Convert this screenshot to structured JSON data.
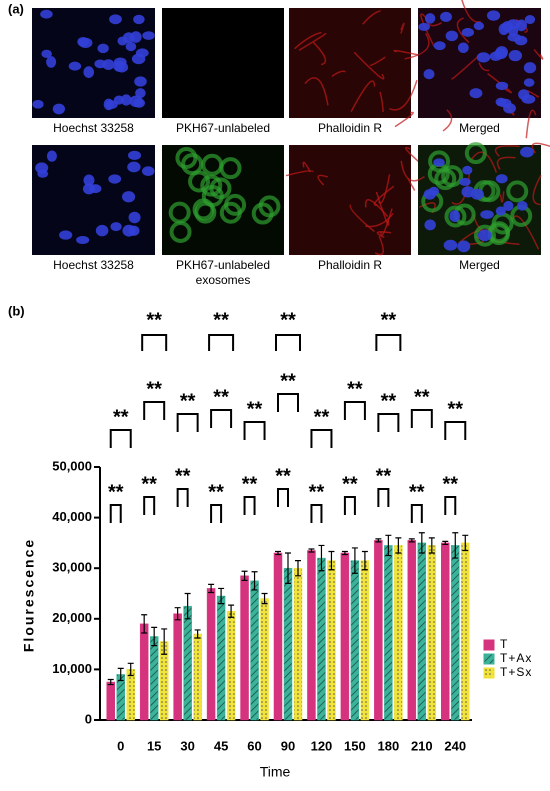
{
  "panel_a": {
    "label": "(a)",
    "row1": [
      "Hoechst 33258",
      "PKH67-unlabeled",
      "Phalloidin R",
      "Merged"
    ],
    "row2": [
      "Hoechst 33258",
      "PKH67-unlabeled exosomes",
      "Phalloidin R",
      "Merged"
    ]
  },
  "chart_data": {
    "type": "bar",
    "panel_label": "(b)",
    "x_label": "Time",
    "y_label": "Flourescence",
    "categories": [
      "0",
      "15",
      "30",
      "45",
      "60",
      "90",
      "120",
      "150",
      "180",
      "210",
      "240"
    ],
    "series": [
      {
        "name": "T",
        "color": "#d6337f",
        "pattern": "solid",
        "values": [
          7500,
          19000,
          21000,
          26000,
          28500,
          33000,
          33500,
          33000,
          35500,
          35500,
          35000
        ],
        "errors": [
          500,
          1800,
          1200,
          800,
          900,
          300,
          300,
          300,
          300,
          300,
          300
        ]
      },
      {
        "name": "T+Ax",
        "color": "#3bb39a",
        "pattern": "hatch",
        "values": [
          9000,
          16500,
          22500,
          24500,
          27500,
          30000,
          32000,
          31500,
          34500,
          35000,
          34500
        ],
        "errors": [
          1200,
          1800,
          2500,
          1500,
          1800,
          3000,
          2500,
          2500,
          2000,
          2000,
          2500
        ]
      },
      {
        "name": "T+Sx",
        "color": "#f2e33a",
        "pattern": "dots",
        "values": [
          10000,
          15500,
          17000,
          21500,
          24000,
          30000,
          31500,
          31500,
          34500,
          34500,
          35000
        ],
        "errors": [
          1200,
          2500,
          800,
          1200,
          1000,
          1500,
          1800,
          1800,
          1500,
          1500,
          1500
        ]
      }
    ],
    "significance": [
      [
        "**",
        "**"
      ],
      [
        "**",
        "**"
      ],
      [
        "**",
        "**"
      ],
      [
        "**",
        "**"
      ],
      [
        "**",
        "**"
      ],
      [
        "**",
        "**"
      ],
      [
        "**",
        "**"
      ],
      [
        "**",
        "**"
      ],
      [
        "**",
        "**"
      ],
      [
        "**",
        "**"
      ],
      [
        "**",
        "**"
      ]
    ],
    "top_significance": [
      "**",
      "**",
      "**",
      "**"
    ],
    "ylim": [
      0,
      50000
    ],
    "yticks": [
      0,
      {
        "value": 10000,
        "label": "10,000"
      },
      {
        "value": 20000,
        "label": "20,000"
      },
      {
        "value": 30000,
        "label": "30,000"
      },
      {
        "value": 40000,
        "label": "40,000"
      },
      {
        "value": 50000,
        "label": "50,000"
      }
    ]
  }
}
